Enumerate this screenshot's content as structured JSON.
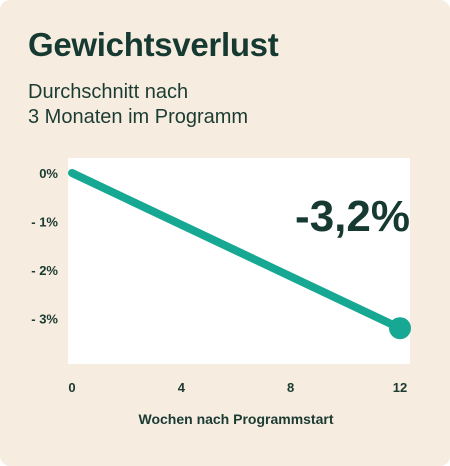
{
  "title": "Gewichtsverlust",
  "subtitle_line1": "Durchschnitt nach",
  "subtitle_line2": "3 Monaten im Programm",
  "colors": {
    "background": "#f6ece0",
    "plot_area": "#ffffff",
    "line": "#16a892",
    "text": "#163a31"
  },
  "chart_data": {
    "type": "line",
    "title": "Gewichtsverlust",
    "subtitle": "Durchschnitt nach 3 Monaten im Programm",
    "xlabel": "Wochen nach Programmstart",
    "ylabel": "",
    "x": [
      0,
      12
    ],
    "y": [
      0,
      -3.2
    ],
    "xlim": [
      0,
      12
    ],
    "ylim": [
      -3.8,
      0
    ],
    "x_ticks": [
      0,
      4,
      8,
      12
    ],
    "x_tick_labels": [
      "0",
      "4",
      "8",
      "12"
    ],
    "y_ticks": [
      0,
      -1,
      -2,
      -3
    ],
    "y_tick_labels": [
      "0%",
      "- 1%",
      "- 2%",
      "- 3%"
    ],
    "end_label": "-3,2%",
    "grid": false,
    "legend": "none"
  }
}
